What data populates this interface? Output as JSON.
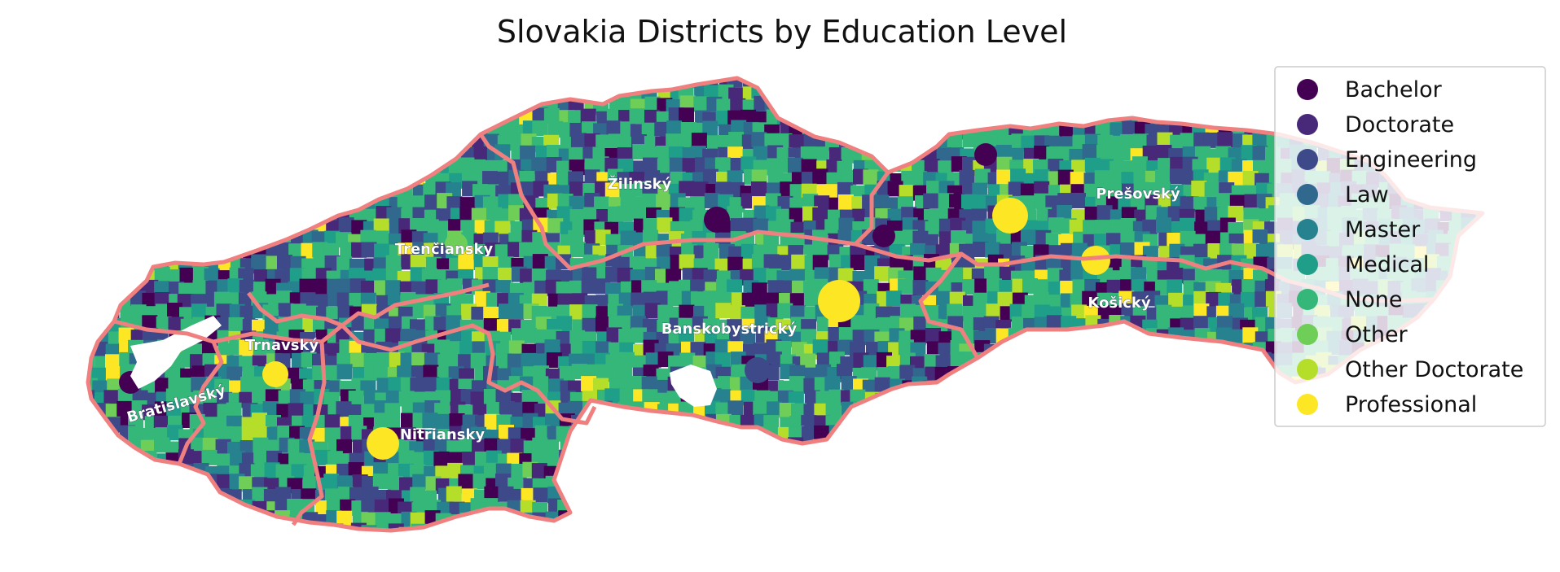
{
  "title": "Slovakia Districts by Education Level",
  "legend": {
    "placement": "upper-right",
    "items": [
      {
        "label": "Bachelor",
        "color": "#440154"
      },
      {
        "label": "Doctorate",
        "color": "#482878"
      },
      {
        "label": "Engineering",
        "color": "#3e4989"
      },
      {
        "label": "Law",
        "color": "#31688e"
      },
      {
        "label": "Master",
        "color": "#26828e"
      },
      {
        "label": "Medical",
        "color": "#1f9e89"
      },
      {
        "label": "None",
        "color": "#35b779"
      },
      {
        "label": "Other",
        "color": "#6ece58"
      },
      {
        "label": "Other Doctorate",
        "color": "#b5de2b"
      },
      {
        "label": "Professional",
        "color": "#fde725"
      }
    ]
  },
  "regions": [
    {
      "id": "bratislavsky",
      "label": "Bratislavský"
    },
    {
      "id": "trnavsky",
      "label": "Trnavský"
    },
    {
      "id": "trenciansky",
      "label": "Trenčiansky"
    },
    {
      "id": "nitriansky",
      "label": "Nitriansky"
    },
    {
      "id": "zilinsky",
      "label": "Žilinský"
    },
    {
      "id": "banskobystricky",
      "label": "Banskobystrický"
    },
    {
      "id": "presovsky",
      "label": "Prešovský"
    },
    {
      "id": "kosicky",
      "label": "Košický"
    }
  ],
  "colors": {
    "region_border": "#f08080",
    "water": "#ffffff"
  }
}
